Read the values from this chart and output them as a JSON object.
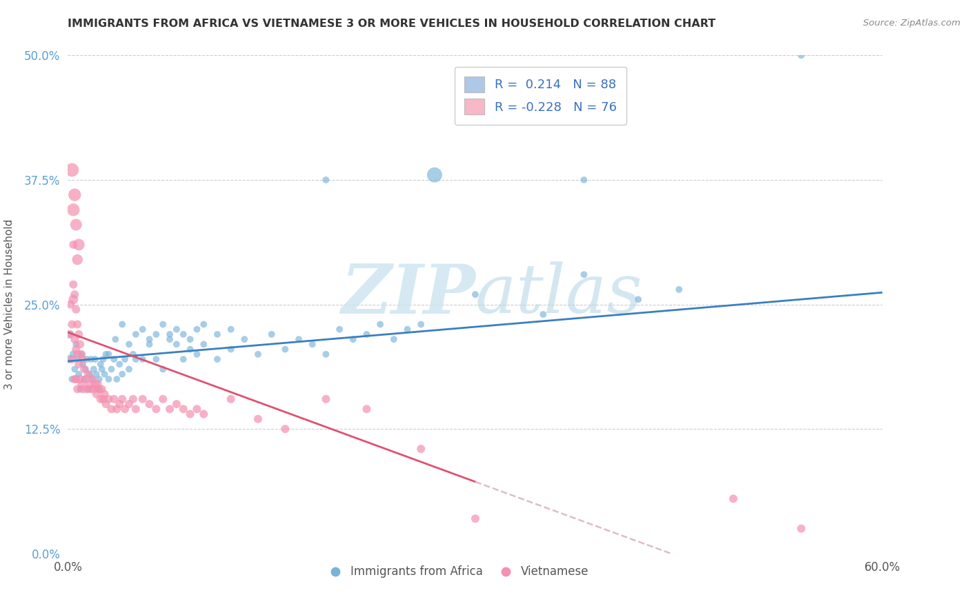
{
  "title": "IMMIGRANTS FROM AFRICA VS VIETNAMESE 3 OR MORE VEHICLES IN HOUSEHOLD CORRELATION CHART",
  "source": "Source: ZipAtlas.com",
  "ylabel_label": "3 or more Vehicles in Household",
  "legend_labels_bottom": [
    "Immigrants from Africa",
    "Vietnamese"
  ],
  "africa_color": "#7ab3d9",
  "vietnamese_color": "#f490b0",
  "trendline_africa_color": "#3a7fc1",
  "trendline_vietnamese_color": "#e05070",
  "trendline_viet_dash_color": "#ddbbcc",
  "watermark_color": "#cce4f0",
  "xlim": [
    0.0,
    0.6
  ],
  "ylim": [
    0.0,
    0.5
  ],
  "africa_trendline": [
    0.0,
    0.6,
    0.193,
    0.262
  ],
  "viet_trendline_solid": [
    0.0,
    0.3,
    0.222,
    0.072
  ],
  "viet_trendline_dash": [
    0.3,
    0.6,
    0.072,
    -0.078
  ],
  "africa_pts": [
    [
      0.001,
      0.195
    ],
    [
      0.002,
      0.22
    ],
    [
      0.003,
      0.175
    ],
    [
      0.004,
      0.2
    ],
    [
      0.005,
      0.185
    ],
    [
      0.006,
      0.21
    ],
    [
      0.007,
      0.195
    ],
    [
      0.008,
      0.18
    ],
    [
      0.009,
      0.165
    ],
    [
      0.01,
      0.2
    ],
    [
      0.011,
      0.19
    ],
    [
      0.012,
      0.175
    ],
    [
      0.013,
      0.185
    ],
    [
      0.014,
      0.195
    ],
    [
      0.015,
      0.165
    ],
    [
      0.016,
      0.18
    ],
    [
      0.017,
      0.195
    ],
    [
      0.018,
      0.175
    ],
    [
      0.019,
      0.185
    ],
    [
      0.02,
      0.195
    ],
    [
      0.021,
      0.18
    ],
    [
      0.022,
      0.165
    ],
    [
      0.023,
      0.175
    ],
    [
      0.024,
      0.19
    ],
    [
      0.025,
      0.185
    ],
    [
      0.026,
      0.195
    ],
    [
      0.027,
      0.18
    ],
    [
      0.028,
      0.2
    ],
    [
      0.03,
      0.175
    ],
    [
      0.032,
      0.185
    ],
    [
      0.034,
      0.195
    ],
    [
      0.036,
      0.175
    ],
    [
      0.038,
      0.19
    ],
    [
      0.04,
      0.18
    ],
    [
      0.042,
      0.195
    ],
    [
      0.045,
      0.185
    ],
    [
      0.048,
      0.2
    ],
    [
      0.05,
      0.195
    ],
    [
      0.055,
      0.195
    ],
    [
      0.06,
      0.21
    ],
    [
      0.065,
      0.195
    ],
    [
      0.07,
      0.185
    ],
    [
      0.075,
      0.22
    ],
    [
      0.08,
      0.21
    ],
    [
      0.085,
      0.195
    ],
    [
      0.09,
      0.205
    ],
    [
      0.095,
      0.2
    ],
    [
      0.1,
      0.21
    ],
    [
      0.11,
      0.195
    ],
    [
      0.12,
      0.205
    ],
    [
      0.13,
      0.215
    ],
    [
      0.14,
      0.2
    ],
    [
      0.15,
      0.22
    ],
    [
      0.16,
      0.205
    ],
    [
      0.17,
      0.215
    ],
    [
      0.18,
      0.21
    ],
    [
      0.19,
      0.2
    ],
    [
      0.2,
      0.225
    ],
    [
      0.21,
      0.215
    ],
    [
      0.22,
      0.22
    ],
    [
      0.23,
      0.23
    ],
    [
      0.24,
      0.215
    ],
    [
      0.25,
      0.225
    ],
    [
      0.26,
      0.23
    ],
    [
      0.03,
      0.2
    ],
    [
      0.035,
      0.215
    ],
    [
      0.04,
      0.23
    ],
    [
      0.045,
      0.21
    ],
    [
      0.05,
      0.22
    ],
    [
      0.055,
      0.225
    ],
    [
      0.06,
      0.215
    ],
    [
      0.065,
      0.22
    ],
    [
      0.07,
      0.23
    ],
    [
      0.075,
      0.215
    ],
    [
      0.08,
      0.225
    ],
    [
      0.085,
      0.22
    ],
    [
      0.09,
      0.215
    ],
    [
      0.095,
      0.225
    ],
    [
      0.1,
      0.23
    ],
    [
      0.11,
      0.22
    ],
    [
      0.12,
      0.225
    ],
    [
      0.3,
      0.26
    ],
    [
      0.35,
      0.24
    ],
    [
      0.38,
      0.28
    ],
    [
      0.42,
      0.255
    ],
    [
      0.45,
      0.265
    ],
    [
      0.38,
      0.375
    ],
    [
      0.27,
      0.38
    ],
    [
      0.54,
      0.5
    ],
    [
      0.3,
      0.44
    ],
    [
      0.19,
      0.375
    ]
  ],
  "africa_sizes": [
    30,
    25,
    20,
    25,
    20,
    20,
    20,
    20,
    20,
    20,
    20,
    20,
    20,
    20,
    20,
    20,
    20,
    20,
    20,
    20,
    20,
    20,
    20,
    20,
    20,
    20,
    20,
    20,
    20,
    20,
    20,
    20,
    20,
    20,
    20,
    20,
    20,
    20,
    20,
    20,
    20,
    20,
    20,
    20,
    20,
    20,
    20,
    20,
    20,
    20,
    20,
    20,
    20,
    20,
    20,
    20,
    20,
    20,
    20,
    20,
    20,
    20,
    20,
    20,
    20,
    20,
    20,
    20,
    20,
    20,
    20,
    20,
    20,
    20,
    20,
    20,
    20,
    20,
    20,
    20,
    20,
    20,
    20,
    20,
    20,
    20,
    20,
    100,
    20,
    20,
    20
  ],
  "viet_pts": [
    [
      0.001,
      0.22
    ],
    [
      0.002,
      0.25
    ],
    [
      0.003,
      0.23
    ],
    [
      0.003,
      0.195
    ],
    [
      0.004,
      0.31
    ],
    [
      0.004,
      0.27
    ],
    [
      0.005,
      0.26
    ],
    [
      0.005,
      0.215
    ],
    [
      0.005,
      0.175
    ],
    [
      0.006,
      0.245
    ],
    [
      0.006,
      0.205
    ],
    [
      0.006,
      0.175
    ],
    [
      0.007,
      0.23
    ],
    [
      0.007,
      0.2
    ],
    [
      0.007,
      0.165
    ],
    [
      0.008,
      0.22
    ],
    [
      0.008,
      0.19
    ],
    [
      0.009,
      0.21
    ],
    [
      0.009,
      0.175
    ],
    [
      0.01,
      0.2
    ],
    [
      0.01,
      0.17
    ],
    [
      0.011,
      0.195
    ],
    [
      0.011,
      0.165
    ],
    [
      0.012,
      0.185
    ],
    [
      0.013,
      0.175
    ],
    [
      0.014,
      0.165
    ],
    [
      0.015,
      0.18
    ],
    [
      0.016,
      0.17
    ],
    [
      0.017,
      0.165
    ],
    [
      0.018,
      0.175
    ],
    [
      0.019,
      0.165
    ],
    [
      0.02,
      0.17
    ],
    [
      0.021,
      0.16
    ],
    [
      0.022,
      0.17
    ],
    [
      0.023,
      0.165
    ],
    [
      0.024,
      0.155
    ],
    [
      0.025,
      0.165
    ],
    [
      0.026,
      0.155
    ],
    [
      0.027,
      0.16
    ],
    [
      0.028,
      0.15
    ],
    [
      0.03,
      0.155
    ],
    [
      0.032,
      0.145
    ],
    [
      0.034,
      0.155
    ],
    [
      0.036,
      0.145
    ],
    [
      0.038,
      0.15
    ],
    [
      0.04,
      0.155
    ],
    [
      0.042,
      0.145
    ],
    [
      0.045,
      0.15
    ],
    [
      0.048,
      0.155
    ],
    [
      0.05,
      0.145
    ],
    [
      0.055,
      0.155
    ],
    [
      0.06,
      0.15
    ],
    [
      0.065,
      0.145
    ],
    [
      0.07,
      0.155
    ],
    [
      0.075,
      0.145
    ],
    [
      0.08,
      0.15
    ],
    [
      0.085,
      0.145
    ],
    [
      0.09,
      0.14
    ],
    [
      0.095,
      0.145
    ],
    [
      0.1,
      0.14
    ],
    [
      0.005,
      0.36
    ],
    [
      0.006,
      0.33
    ],
    [
      0.007,
      0.295
    ],
    [
      0.008,
      0.31
    ],
    [
      0.003,
      0.385
    ],
    [
      0.004,
      0.345
    ],
    [
      0.004,
      0.255
    ],
    [
      0.12,
      0.155
    ],
    [
      0.14,
      0.135
    ],
    [
      0.16,
      0.125
    ],
    [
      0.19,
      0.155
    ],
    [
      0.22,
      0.145
    ],
    [
      0.26,
      0.105
    ],
    [
      0.3,
      0.035
    ],
    [
      0.49,
      0.055
    ],
    [
      0.54,
      0.025
    ]
  ],
  "viet_sizes": [
    30,
    30,
    30,
    30,
    30,
    30,
    30,
    30,
    30,
    30,
    30,
    30,
    30,
    30,
    30,
    30,
    30,
    30,
    30,
    30,
    30,
    30,
    30,
    30,
    30,
    30,
    30,
    30,
    30,
    30,
    30,
    30,
    30,
    30,
    30,
    30,
    30,
    30,
    30,
    30,
    30,
    30,
    30,
    30,
    30,
    30,
    30,
    30,
    30,
    30,
    30,
    30,
    30,
    30,
    30,
    30,
    30,
    30,
    30,
    30,
    70,
    60,
    50,
    60,
    80,
    70,
    40,
    30,
    30,
    30,
    30,
    30,
    30,
    30,
    30,
    30
  ]
}
